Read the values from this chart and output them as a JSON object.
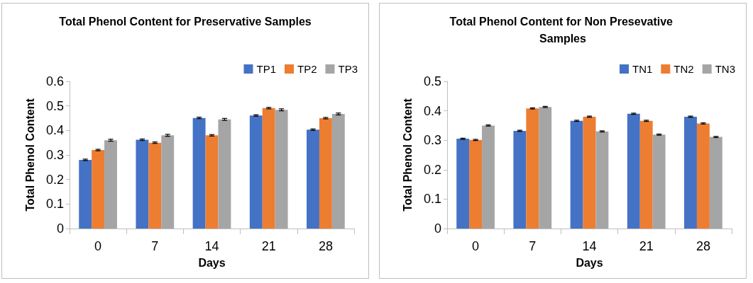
{
  "chart_data": [
    {
      "type": "bar",
      "title": "Total Phenol Content for Preservative Samples",
      "xlabel": "Days",
      "ylabel": "Total Phenol Content",
      "categories": [
        "0",
        "7",
        "14",
        "21",
        "28"
      ],
      "series": [
        {
          "name": "TP1",
          "color": "#4472c4",
          "values": [
            0.28,
            0.362,
            0.451,
            0.461,
            0.403
          ],
          "errors": [
            0.003,
            0.003,
            0.003,
            0.003,
            0.003
          ]
        },
        {
          "name": "TP2",
          "color": "#ed7d31",
          "values": [
            0.32,
            0.35,
            0.38,
            0.491,
            0.45
          ],
          "errors": [
            0.003,
            0.003,
            0.003,
            0.003,
            0.003
          ]
        },
        {
          "name": "TP3",
          "color": "#a5a5a5",
          "values": [
            0.36,
            0.38,
            0.445,
            0.484,
            0.467
          ],
          "errors": [
            0.004,
            0.004,
            0.004,
            0.004,
            0.004
          ]
        }
      ],
      "ylim": [
        0,
        0.6
      ],
      "yticks": [
        0,
        0.1,
        0.2,
        0.3,
        0.4,
        0.5,
        0.6
      ],
      "legend": "top right"
    },
    {
      "type": "bar",
      "title": "Total Phenol Content for Non Presevative Samples",
      "xlabel": "Days",
      "ylabel": "Total Phenol Content",
      "categories": [
        "0",
        "7",
        "14",
        "21",
        "28"
      ],
      "series": [
        {
          "name": "TN1",
          "color": "#4472c4",
          "values": [
            0.305,
            0.332,
            0.366,
            0.39,
            0.38
          ],
          "errors": [
            0.002,
            0.002,
            0.002,
            0.002,
            0.002
          ]
        },
        {
          "name": "TN2",
          "color": "#ed7d31",
          "values": [
            0.301,
            0.408,
            0.38,
            0.366,
            0.357
          ],
          "errors": [
            0.002,
            0.002,
            0.002,
            0.002,
            0.002
          ]
        },
        {
          "name": "TN3",
          "color": "#a5a5a5",
          "values": [
            0.35,
            0.413,
            0.33,
            0.319,
            0.311
          ],
          "errors": [
            0.002,
            0.002,
            0.002,
            0.002,
            0.002
          ]
        }
      ],
      "ylim": [
        0,
        0.5
      ],
      "yticks": [
        0,
        0.1,
        0.2,
        0.3,
        0.4,
        0.5
      ],
      "legend": "top right"
    }
  ]
}
